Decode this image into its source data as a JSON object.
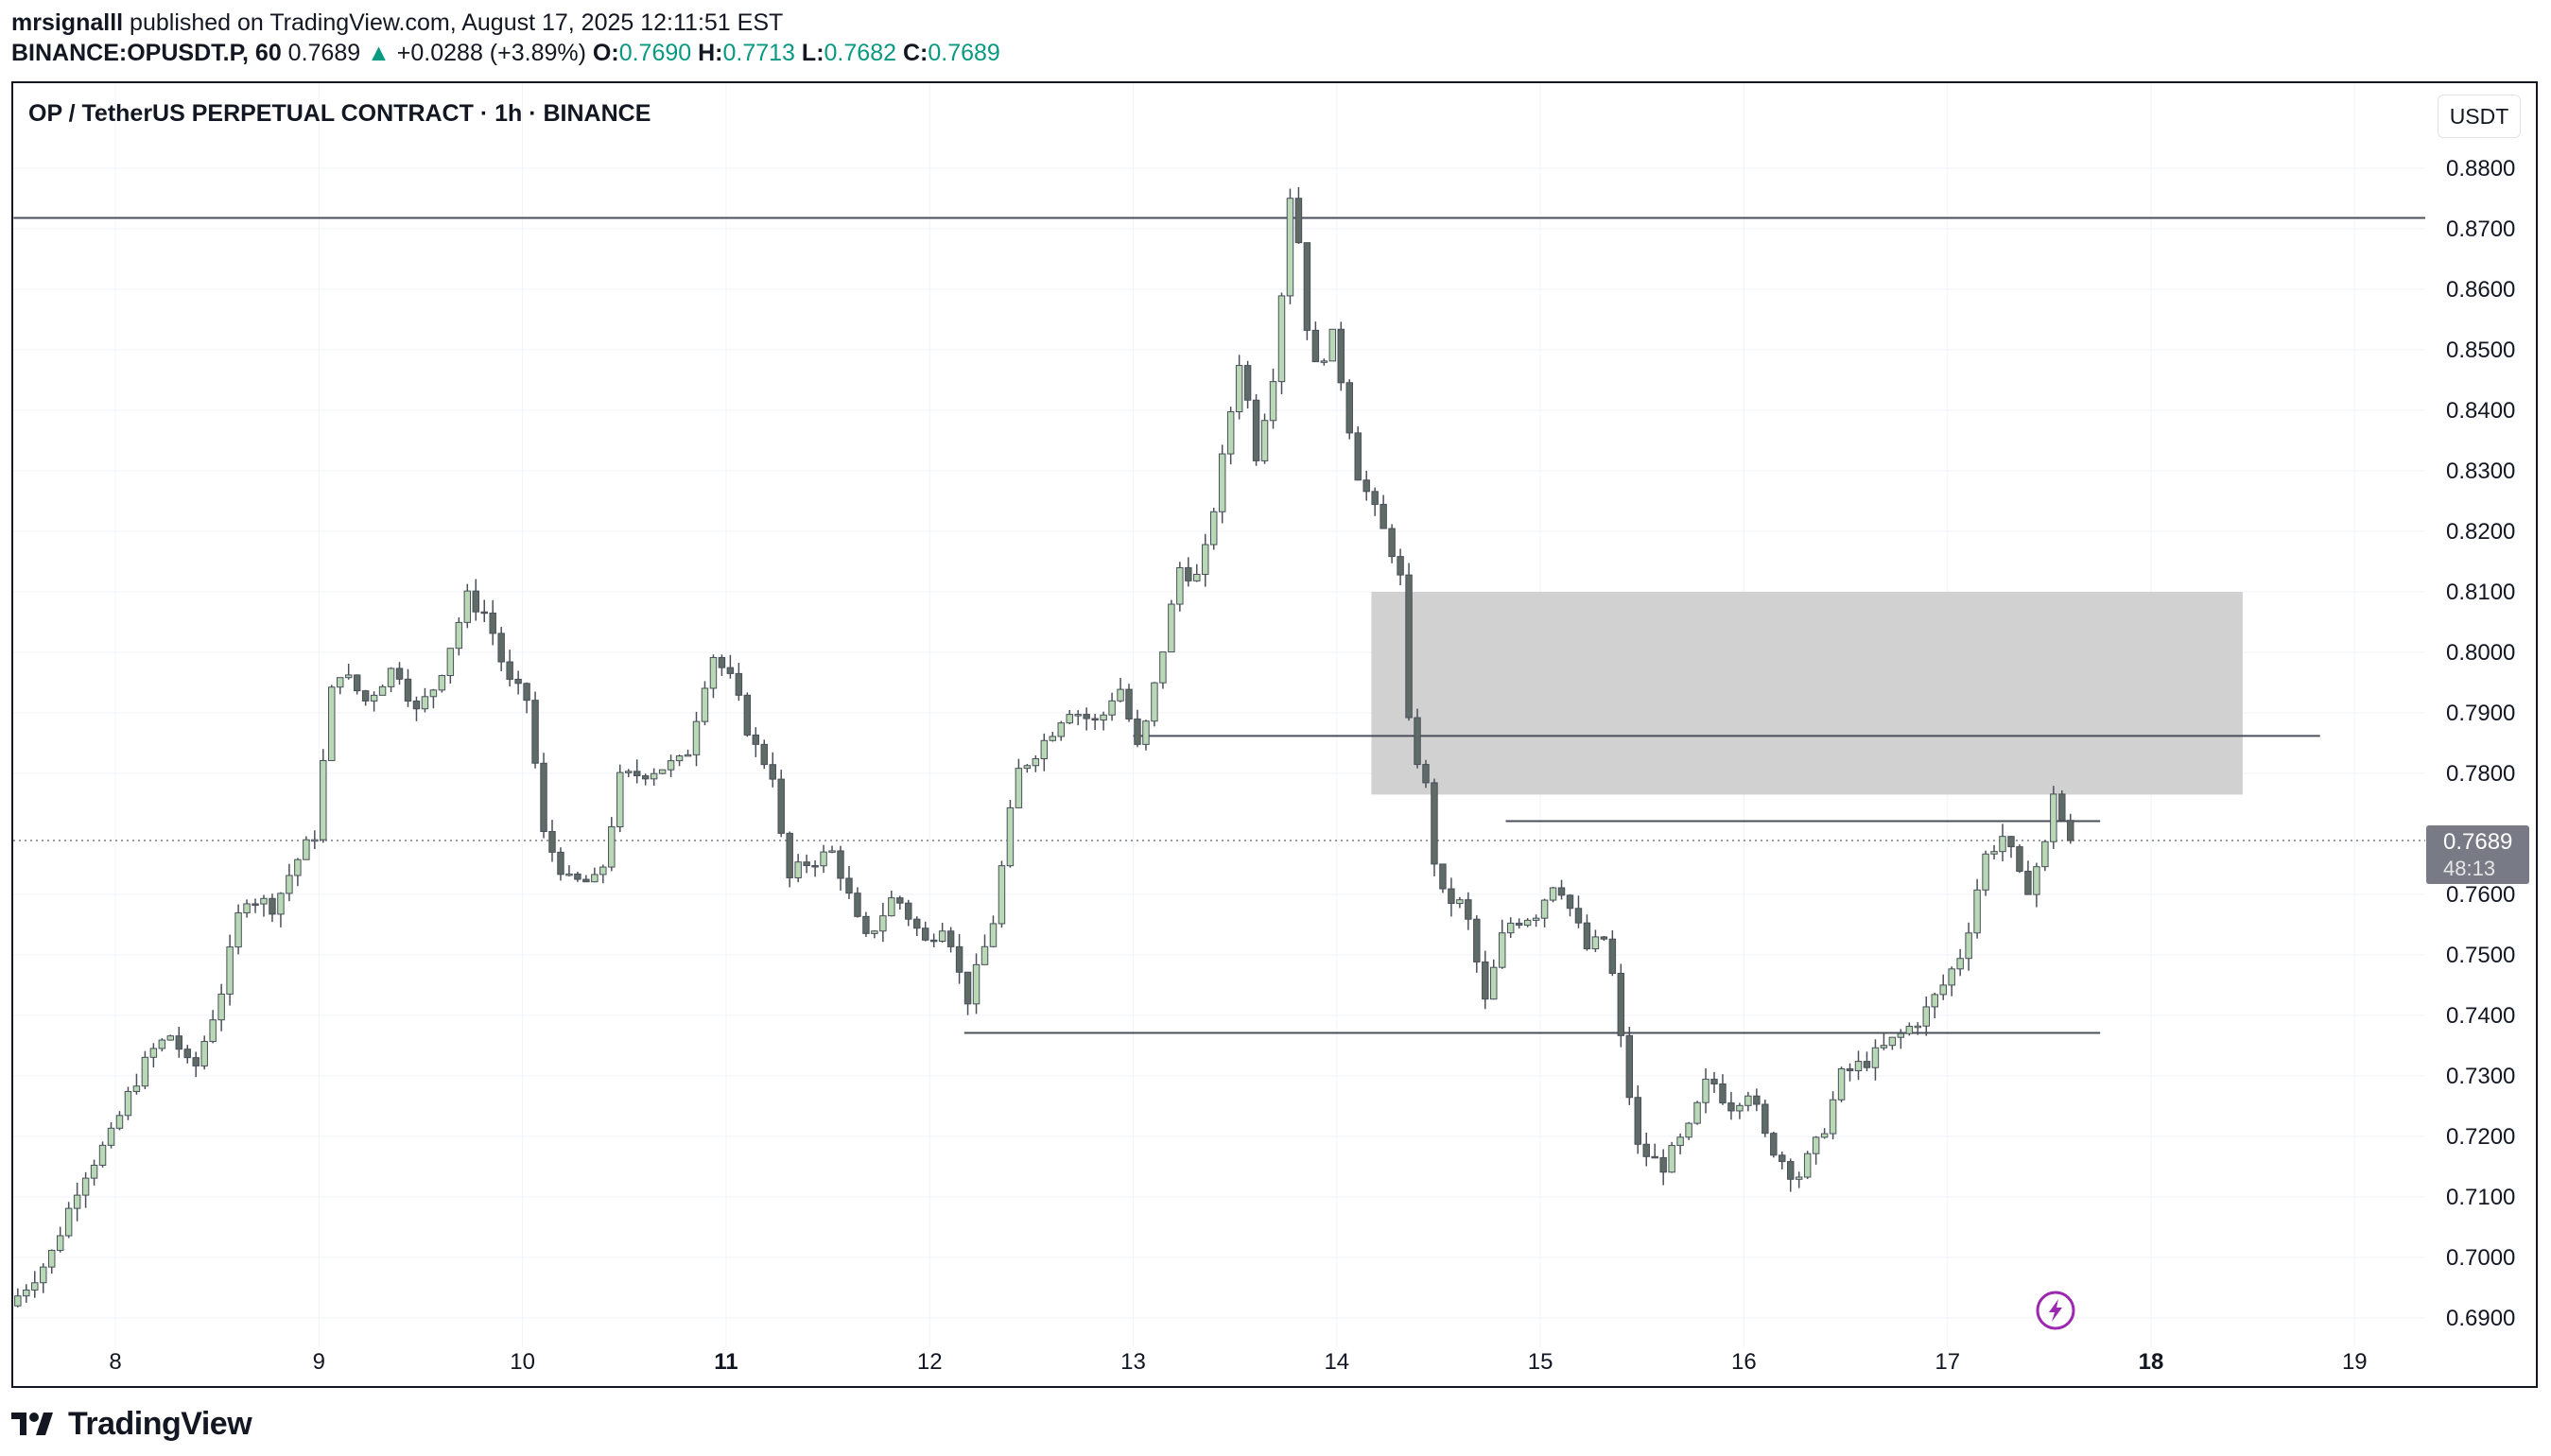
{
  "header": {
    "author": "mrsignalll",
    "published_text": "published on TradingView.com, August 17, 2025 12:11:51 EST",
    "symbol": "BINANCE:OPUSDT.P, 60",
    "last": "0.7689",
    "change_arrow": "▲",
    "change": "+0.0288 (+3.89%)",
    "o_label": "O:",
    "o_value": "0.7690",
    "h_label": "H:",
    "h_value": "0.7713",
    "l_label": "L:",
    "l_value": "0.7682",
    "c_label": "C:",
    "c_value": "0.7689"
  },
  "chart_title": "OP / TetherUS PERPETUAL CONTRACT · 1h · BINANCE",
  "currency_button": "USDT",
  "price_label": {
    "value": "0.7689",
    "countdown": "48:13"
  },
  "footer": {
    "brand": "TradingView"
  },
  "colors": {
    "up_body": "#b9d9b6",
    "down_body": "#5f6b66",
    "wick": "#4a4f5a",
    "zone": "#d1d1d1",
    "grid": "#f0f3fa",
    "accent": "#9c27b0"
  },
  "chart_data": {
    "type": "candlestick",
    "title": "OP / TetherUS PERPETUAL CONTRACT · 1h · BINANCE",
    "y_ticks": [
      "0.8800",
      "0.8700",
      "0.8600",
      "0.8500",
      "0.8400",
      "0.8300",
      "0.8200",
      "0.8100",
      "0.8000",
      "0.7900",
      "0.7800",
      "0.7600",
      "0.7500",
      "0.7400",
      "0.7300",
      "0.7200",
      "0.7100",
      "0.7000",
      "0.6900"
    ],
    "x_ticks": [
      {
        "label": "8",
        "day": 8,
        "bold": false
      },
      {
        "label": "9",
        "day": 9,
        "bold": false
      },
      {
        "label": "10",
        "day": 10,
        "bold": false
      },
      {
        "label": "11",
        "day": 11,
        "bold": true
      },
      {
        "label": "12",
        "day": 12,
        "bold": false
      },
      {
        "label": "13",
        "day": 13,
        "bold": false
      },
      {
        "label": "14",
        "day": 14,
        "bold": false
      },
      {
        "label": "15",
        "day": 15,
        "bold": false
      },
      {
        "label": "16",
        "day": 16,
        "bold": false
      },
      {
        "label": "17",
        "day": 17,
        "bold": false
      },
      {
        "label": "18",
        "day": 18,
        "bold": true
      },
      {
        "label": "19",
        "day": 19,
        "bold": false
      }
    ],
    "ylim": [
      0.6865,
      0.8915
    ],
    "xlim": [
      7.5,
      19.35
    ],
    "first_bar_day": 7.5,
    "bar_hours": 1,
    "last_price": 0.7689,
    "horizontal_lines": [
      {
        "price": 0.8718,
        "day_start": 7.5,
        "day_end": 19.35
      },
      {
        "price": 0.7862,
        "day_start": 13.0,
        "day_end": 18.83
      },
      {
        "price": 0.7721,
        "day_start": 14.83,
        "day_end": 17.75
      },
      {
        "price": 0.7371,
        "day_start": 12.17,
        "day_end": 17.75
      }
    ],
    "zone": {
      "price_top": 0.81,
      "price_bottom": 0.7765,
      "day_start": 14.17,
      "day_end": 18.45
    },
    "anchors": [
      [
        7.5,
        0.692
      ],
      [
        7.7,
        0.7
      ],
      [
        7.85,
        0.713
      ],
      [
        8.0,
        0.72
      ],
      [
        8.1,
        0.728
      ],
      [
        8.2,
        0.734
      ],
      [
        8.3,
        0.737
      ],
      [
        8.4,
        0.73
      ],
      [
        8.55,
        0.745
      ],
      [
        8.65,
        0.76
      ],
      [
        8.8,
        0.758
      ],
      [
        8.9,
        0.765
      ],
      [
        9.0,
        0.77
      ],
      [
        9.1,
        0.798
      ],
      [
        9.25,
        0.792
      ],
      [
        9.4,
        0.798
      ],
      [
        9.5,
        0.79
      ],
      [
        9.6,
        0.795
      ],
      [
        9.75,
        0.809
      ],
      [
        9.85,
        0.806
      ],
      [
        9.95,
        0.795
      ],
      [
        10.05,
        0.792
      ],
      [
        10.12,
        0.77
      ],
      [
        10.25,
        0.762
      ],
      [
        10.4,
        0.762
      ],
      [
        10.5,
        0.779
      ],
      [
        10.7,
        0.781
      ],
      [
        10.82,
        0.782
      ],
      [
        10.95,
        0.8
      ],
      [
        11.05,
        0.795
      ],
      [
        11.15,
        0.785
      ],
      [
        11.25,
        0.78
      ],
      [
        11.32,
        0.762
      ],
      [
        11.4,
        0.765
      ],
      [
        11.55,
        0.767
      ],
      [
        11.7,
        0.752
      ],
      [
        11.85,
        0.76
      ],
      [
        12.0,
        0.752
      ],
      [
        12.1,
        0.756
      ],
      [
        12.2,
        0.742
      ],
      [
        12.33,
        0.755
      ],
      [
        12.45,
        0.78
      ],
      [
        12.6,
        0.786
      ],
      [
        12.7,
        0.791
      ],
      [
        12.85,
        0.788
      ],
      [
        12.95,
        0.795
      ],
      [
        13.05,
        0.783
      ],
      [
        13.15,
        0.798
      ],
      [
        13.25,
        0.814
      ],
      [
        13.35,
        0.812
      ],
      [
        13.45,
        0.83
      ],
      [
        13.55,
        0.85
      ],
      [
        13.62,
        0.832
      ],
      [
        13.72,
        0.848
      ],
      [
        13.8,
        0.879
      ],
      [
        13.9,
        0.846
      ],
      [
        14.0,
        0.852
      ],
      [
        14.05,
        0.844
      ],
      [
        14.12,
        0.83
      ],
      [
        14.25,
        0.82
      ],
      [
        14.33,
        0.814
      ],
      [
        14.38,
        0.785
      ],
      [
        14.45,
        0.78
      ],
      [
        14.52,
        0.76
      ],
      [
        14.65,
        0.758
      ],
      [
        14.75,
        0.742
      ],
      [
        14.85,
        0.755
      ],
      [
        15.0,
        0.757
      ],
      [
        15.1,
        0.763
      ],
      [
        15.25,
        0.751
      ],
      [
        15.35,
        0.753
      ],
      [
        15.42,
        0.735
      ],
      [
        15.5,
        0.718
      ],
      [
        15.62,
        0.715
      ],
      [
        15.75,
        0.721
      ],
      [
        15.85,
        0.73
      ],
      [
        15.95,
        0.725
      ],
      [
        16.05,
        0.728
      ],
      [
        16.12,
        0.72
      ],
      [
        16.28,
        0.713
      ],
      [
        16.4,
        0.72
      ],
      [
        16.5,
        0.73
      ],
      [
        16.65,
        0.733
      ],
      [
        16.8,
        0.737
      ],
      [
        16.9,
        0.74
      ],
      [
        17.0,
        0.745
      ],
      [
        17.1,
        0.751
      ],
      [
        17.2,
        0.766
      ],
      [
        17.3,
        0.77
      ],
      [
        17.4,
        0.76
      ],
      [
        17.5,
        0.768
      ],
      [
        17.55,
        0.779
      ],
      [
        17.6,
        0.7689
      ]
    ]
  }
}
